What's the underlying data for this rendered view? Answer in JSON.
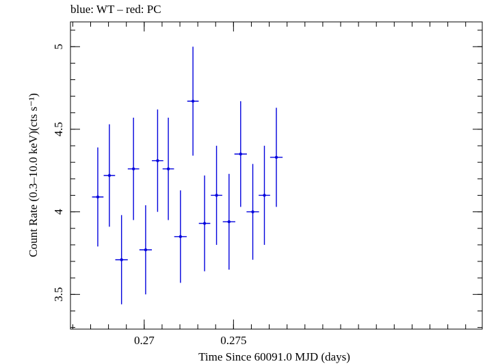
{
  "chart_data": {
    "type": "scatter",
    "title": "blue: WT – red: PC",
    "xlabel": "Time Since 60091.0 MJD (days)",
    "ylabel": "Count Rate (0.3–10.0 keV)(cts s⁻¹)",
    "xlim": [
      0.26587,
      0.28893
    ],
    "ylim": [
      3.29,
      5.15
    ],
    "x_ticks": [
      0.27,
      0.275
    ],
    "x_tick_labels": [
      "0.27",
      "0.275"
    ],
    "y_ticks": [
      3.5,
      4,
      4.5,
      5
    ],
    "y_tick_labels": [
      "3.5",
      "4",
      "4.5",
      "5"
    ],
    "grid": false,
    "series": [
      {
        "color": "#0000dd",
        "points": [
          {
            "x": 0.2674,
            "y": 4.09,
            "xerr": 0.00032,
            "yerr": 0.3
          },
          {
            "x": 0.26805,
            "y": 4.22,
            "xerr": 0.00032,
            "yerr": 0.31
          },
          {
            "x": 0.26873,
            "y": 3.71,
            "xerr": 0.00035,
            "yerr": 0.27
          },
          {
            "x": 0.2694,
            "y": 4.26,
            "xerr": 0.00032,
            "yerr": 0.31
          },
          {
            "x": 0.27008,
            "y": 3.77,
            "xerr": 0.00035,
            "yerr": 0.27
          },
          {
            "x": 0.27075,
            "y": 4.31,
            "xerr": 0.00032,
            "yerr": 0.31
          },
          {
            "x": 0.27135,
            "y": 4.26,
            "xerr": 0.00032,
            "yerr": 0.31
          },
          {
            "x": 0.27203,
            "y": 3.85,
            "xerr": 0.00035,
            "yerr": 0.28
          },
          {
            "x": 0.27273,
            "y": 4.67,
            "xerr": 0.00032,
            "yerr": 0.33
          },
          {
            "x": 0.27338,
            "y": 3.93,
            "xerr": 0.00032,
            "yerr": 0.29
          },
          {
            "x": 0.27405,
            "y": 4.1,
            "xerr": 0.00032,
            "yerr": 0.3
          },
          {
            "x": 0.27475,
            "y": 3.94,
            "xerr": 0.00035,
            "yerr": 0.29
          },
          {
            "x": 0.2754,
            "y": 4.35,
            "xerr": 0.00035,
            "yerr": 0.32
          },
          {
            "x": 0.27608,
            "y": 4.0,
            "xerr": 0.00035,
            "yerr": 0.29
          },
          {
            "x": 0.27673,
            "y": 4.1,
            "xerr": 0.00032,
            "yerr": 0.3
          },
          {
            "x": 0.2774,
            "y": 4.33,
            "xerr": 0.00035,
            "yerr": 0.3
          }
        ]
      }
    ]
  }
}
